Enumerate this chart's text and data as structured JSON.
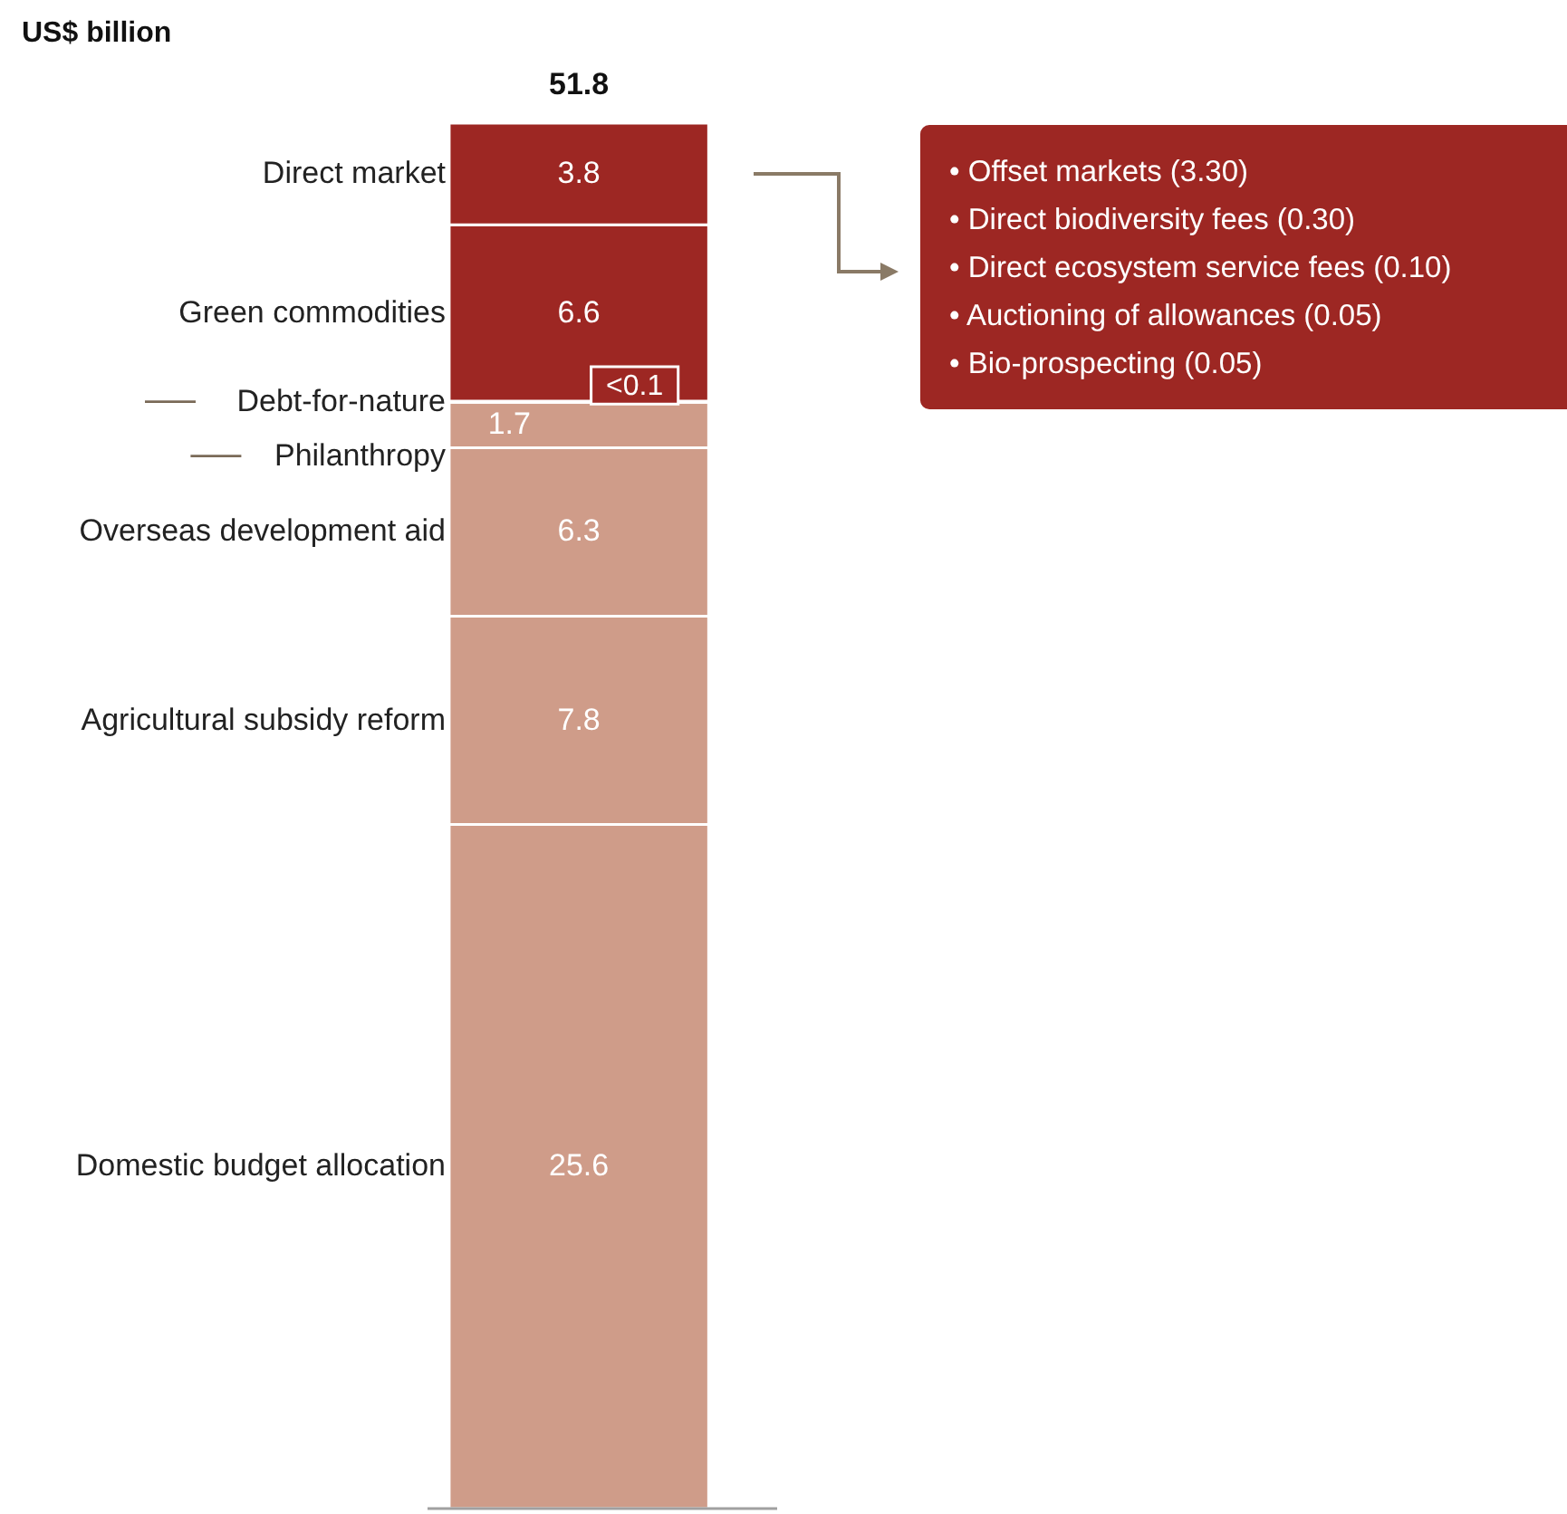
{
  "chart_data": {
    "type": "bar",
    "stacked": true,
    "title": "US$ billion",
    "categories": [
      null
    ],
    "series": [
      {
        "name": "Domestic budget allocation",
        "color": "#cf9c89",
        "values": [
          25.6
        ],
        "value_labels": [
          "25.6"
        ]
      },
      {
        "name": "Agricultural subsidy reform",
        "color": "#cf9c89",
        "values": [
          7.8
        ],
        "value_labels": [
          "7.8"
        ]
      },
      {
        "name": "Overseas development aid",
        "color": "#cf9c89",
        "values": [
          6.3
        ],
        "value_labels": [
          "6.3"
        ]
      },
      {
        "name": "Philanthropy",
        "color": "#cf9c89",
        "values": [
          1.7
        ],
        "value_labels": [
          "1.7"
        ]
      },
      {
        "name": "Debt-for-nature",
        "color": "#9d2723",
        "values": [
          0.05
        ],
        "value_labels": [
          "<0.1"
        ]
      },
      {
        "name": "Green commodities",
        "color": "#9d2723",
        "values": [
          6.6
        ],
        "value_labels": [
          "6.6"
        ]
      },
      {
        "name": "Direct market",
        "color": "#9d2723",
        "values": [
          3.8
        ],
        "value_labels": [
          "3.8"
        ]
      }
    ],
    "totals": [
      "51.8"
    ],
    "annotations": [
      "• Offset markets (3.30)",
      "• Direct biodiversity fees (0.30)",
      "• Direct ecosystem service fees (0.10)",
      "• Auctioning of allowances (0.05)",
      "• Bio-prospecting (0.05)"
    ]
  }
}
